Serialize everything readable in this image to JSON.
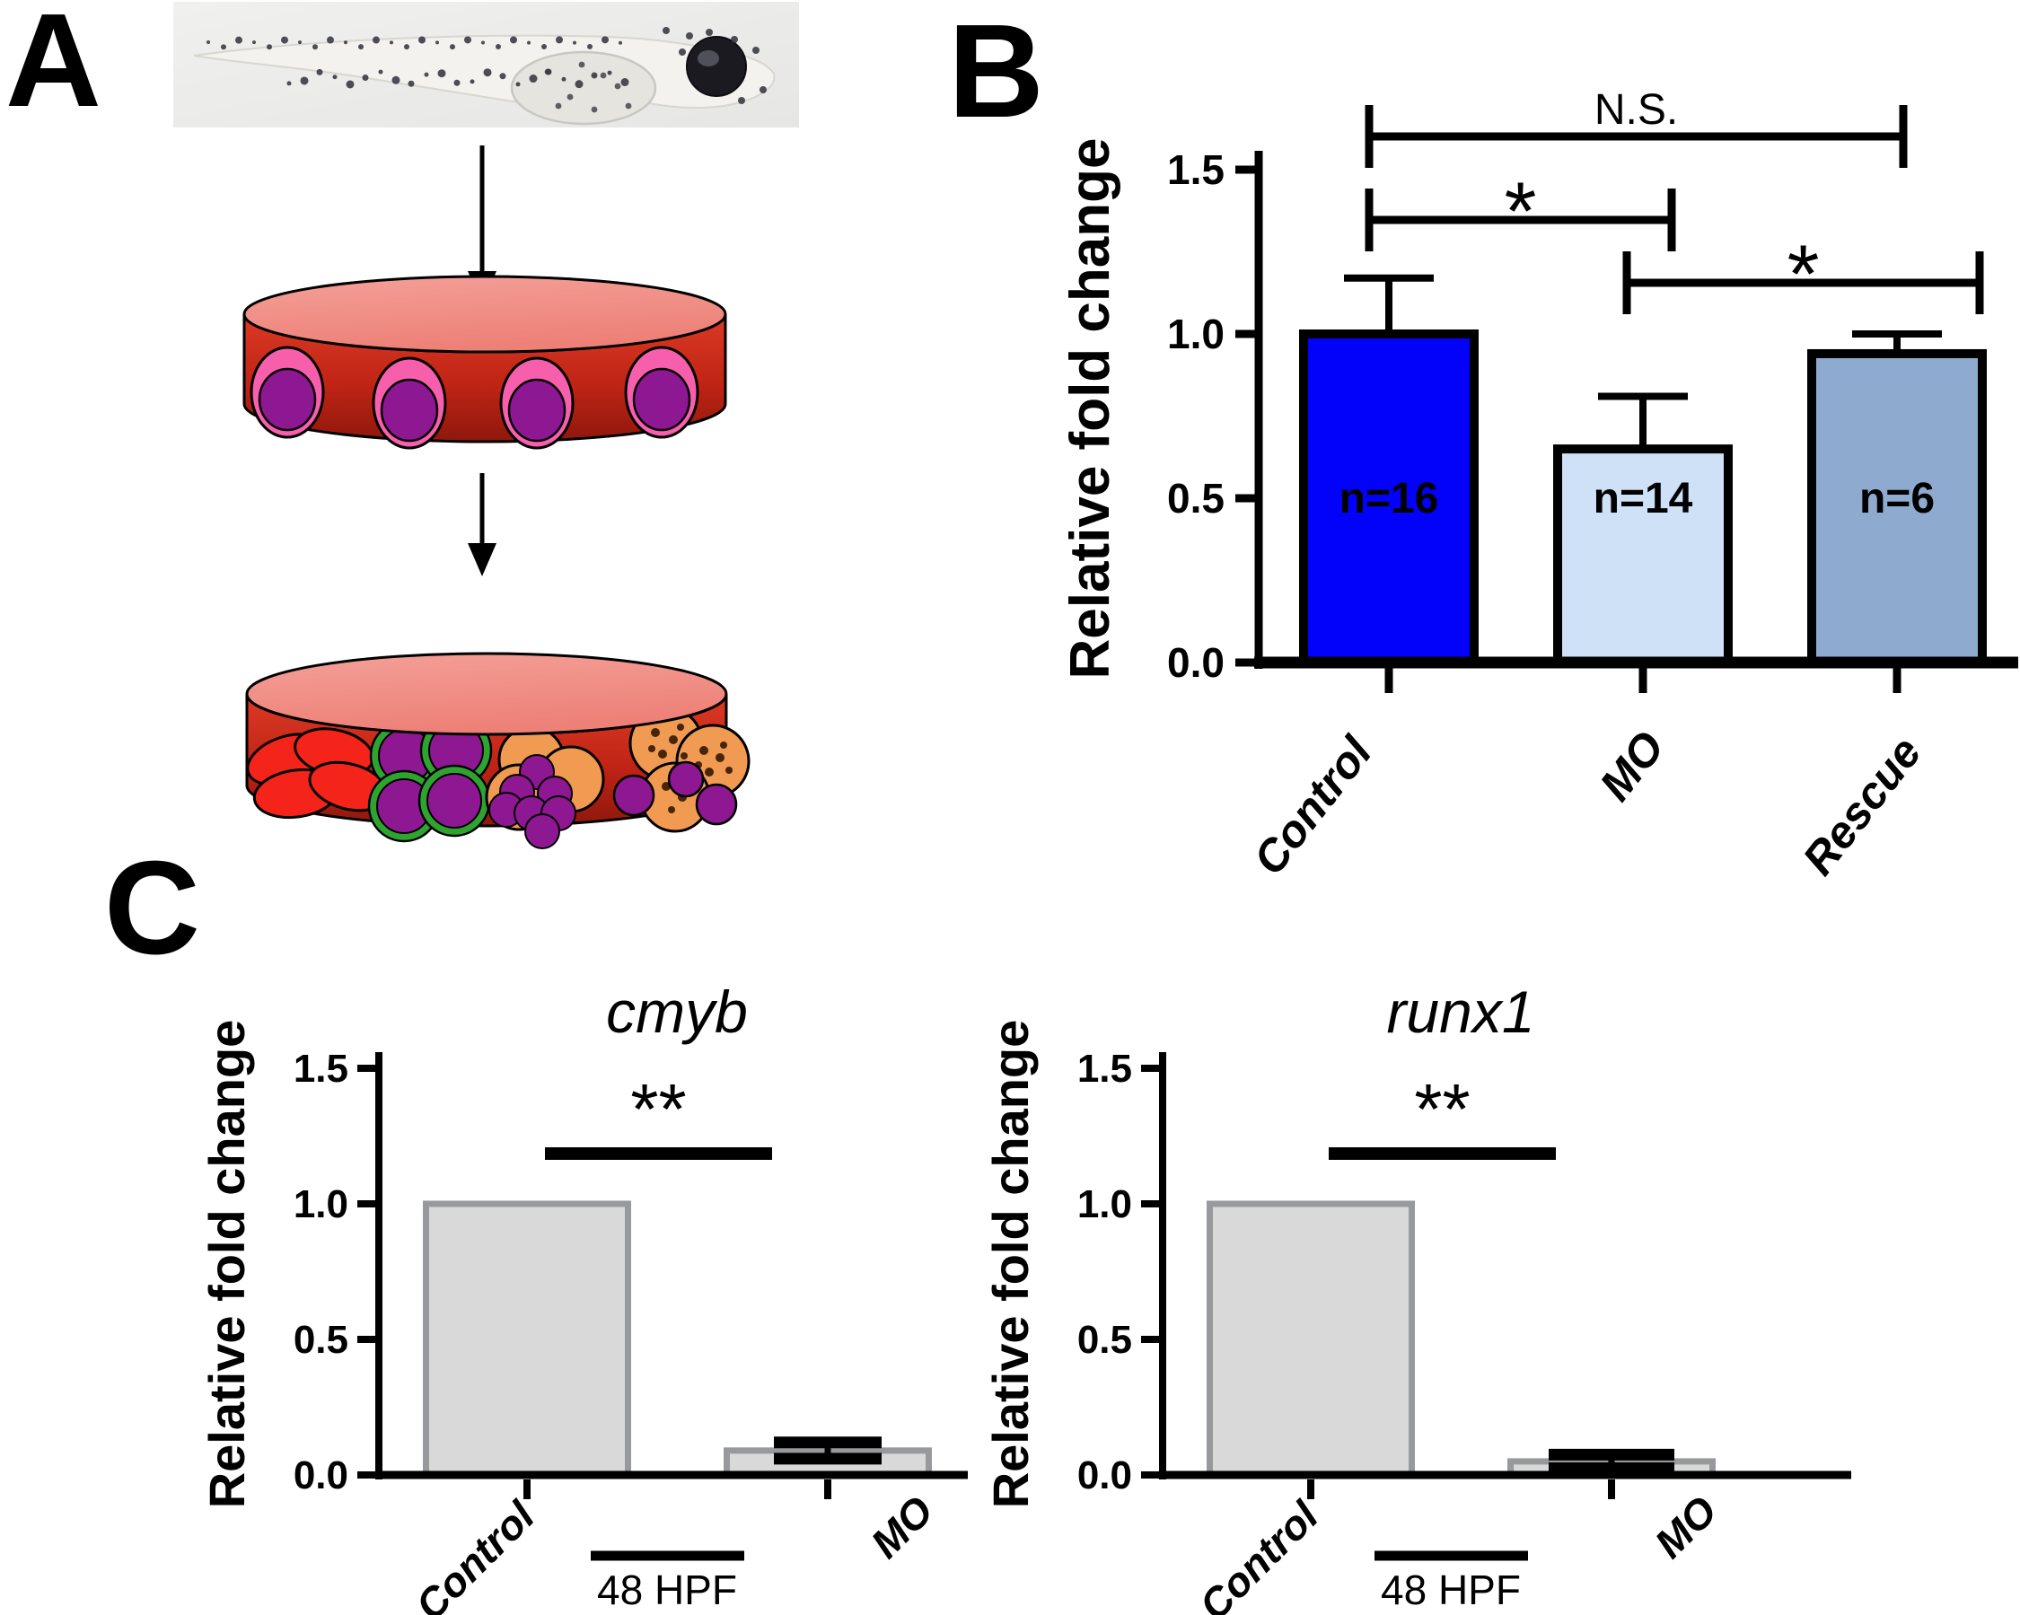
{
  "panels": {
    "a": {
      "label": "A",
      "icons": [
        "zebrafish-larva-photo",
        "down-arrow",
        "progenitor-cells-dish",
        "down-arrow",
        "differentiated-blood-cells-dish"
      ]
    },
    "b": {
      "label": "B"
    },
    "c": {
      "label": "C",
      "group_label": "48 HPF"
    }
  },
  "chart_data": [
    {
      "id": "panel-b",
      "type": "bar",
      "title": "",
      "ylabel": "Relative fold change",
      "ylim": [
        0,
        1.5
      ],
      "yticks": [
        0.0,
        0.5,
        1.0,
        1.5
      ],
      "ytick_labels": [
        "0.0",
        "0.5",
        "1.0",
        "1.5"
      ],
      "categories": [
        "Control",
        "MO",
        "Rescue"
      ],
      "values": [
        1.0,
        0.65,
        0.94
      ],
      "errors": [
        0.17,
        0.16,
        0.06
      ],
      "n_labels": [
        "n=16",
        "n=14",
        "n=6"
      ],
      "bar_colors": [
        "#0202FA",
        "#CEE1F6",
        "#8FAACF"
      ],
      "bar_border": "#000000",
      "grid": false,
      "significance": [
        {
          "from": "Control",
          "to": "Rescue",
          "label": "N.S."
        },
        {
          "from": "Control",
          "to": "MO",
          "label": "*"
        },
        {
          "from": "MO",
          "to": "Rescue",
          "label": "*"
        }
      ]
    },
    {
      "id": "cmyb",
      "type": "bar",
      "title": "cmyb",
      "ylabel": "Relative fold change",
      "ylim": [
        0,
        1.5
      ],
      "yticks": [
        0.0,
        0.5,
        1.0,
        1.5
      ],
      "ytick_labels": [
        "0.0",
        "0.5",
        "1.0",
        "1.5"
      ],
      "categories": [
        "Control",
        "MO"
      ],
      "values": [
        1.0,
        0.09
      ],
      "errors": [
        0,
        0.03
      ],
      "bar_colors": [
        "#D9D9D9",
        "#D9D9D9"
      ],
      "bar_border": "#97999C",
      "grid": false,
      "x_group_label": "48 HPF",
      "significance": [
        {
          "from": "Control",
          "to": "MO",
          "label": "**"
        }
      ]
    },
    {
      "id": "runx1",
      "type": "bar",
      "title": "runx1",
      "ylabel": "Relative fold change",
      "ylim": [
        0,
        1.5
      ],
      "yticks": [
        0.0,
        0.5,
        1.0,
        1.5
      ],
      "ytick_labels": [
        "0.0",
        "0.5",
        "1.0",
        "1.5"
      ],
      "categories": [
        "Control",
        "MO"
      ],
      "values": [
        1.0,
        0.05
      ],
      "errors": [
        0,
        0.025
      ],
      "bar_colors": [
        "#D9D9D9",
        "#D9D9D9"
      ],
      "bar_border": "#97999C",
      "grid": false,
      "x_group_label": "48 HPF",
      "significance": [
        {
          "from": "Control",
          "to": "MO",
          "label": "**"
        }
      ]
    }
  ]
}
